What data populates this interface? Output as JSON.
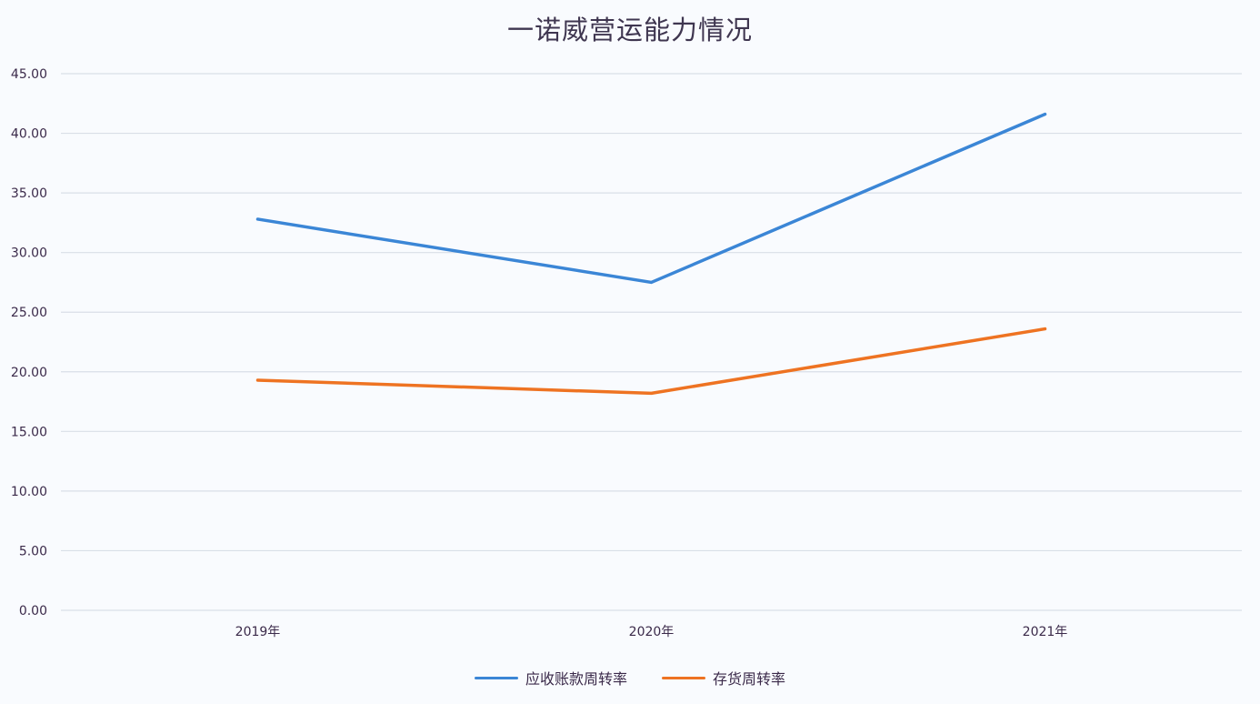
{
  "chart_data": {
    "type": "line",
    "title": "一诺威营运能力情况",
    "xlabel": "",
    "ylabel": "",
    "categories": [
      "2019年",
      "2020年",
      "2021年"
    ],
    "series": [
      {
        "name": "应收账款周转率",
        "color": "#3b86d6",
        "values": [
          32.8,
          27.5,
          41.6
        ]
      },
      {
        "name": "存货周转率",
        "color": "#ee7322",
        "values": [
          19.3,
          18.2,
          23.6
        ]
      }
    ],
    "ylim": [
      0,
      45
    ],
    "yticks": [
      "0.00",
      "5.00",
      "10.00",
      "15.00",
      "20.00",
      "25.00",
      "30.00",
      "35.00",
      "40.00",
      "45.00"
    ],
    "grid": true,
    "legend_position": "bottom"
  },
  "legend": {
    "items": [
      {
        "label": "应收账款周转率",
        "color": "#3b86d6"
      },
      {
        "label": "存货周转率",
        "color": "#ee7322"
      }
    ]
  }
}
